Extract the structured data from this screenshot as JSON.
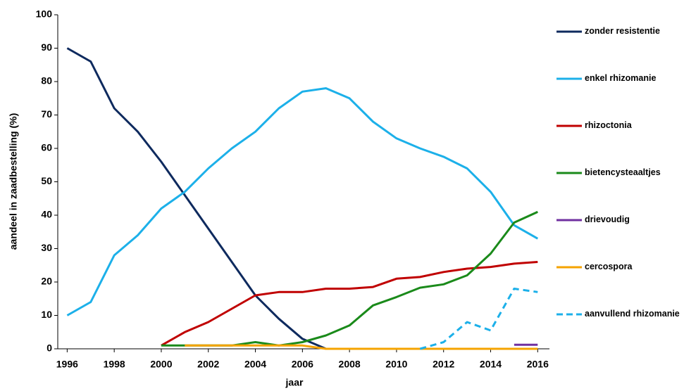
{
  "chart_data": {
    "type": "line",
    "x_label": "jaar",
    "y_label": "aandeel in zaadbestelling (%)",
    "x": [
      1996,
      1997,
      1998,
      1999,
      2000,
      2001,
      2002,
      2003,
      2004,
      2005,
      2006,
      2007,
      2008,
      2009,
      2010,
      2011,
      2012,
      2013,
      2014,
      2015,
      2016
    ],
    "xlim": [
      1995.6,
      2016.5
    ],
    "xticks": [
      1996,
      1998,
      2000,
      2002,
      2004,
      2006,
      2008,
      2010,
      2012,
      2014,
      2016
    ],
    "ylim": [
      0,
      100
    ],
    "yticks": [
      0,
      10,
      20,
      30,
      40,
      50,
      60,
      70,
      80,
      90,
      100
    ],
    "grid": false,
    "legend": "right",
    "series": [
      {
        "name": "zonder resistentie",
        "color": "#0e2a5e",
        "values": [
          90,
          86,
          72,
          65,
          56,
          46,
          36,
          26,
          16,
          9,
          3,
          0,
          null,
          null,
          null,
          null,
          null,
          null,
          null,
          null,
          null
        ]
      },
      {
        "name": "enkel rhizomanie",
        "color": "#1cb0e9",
        "values": [
          10,
          14,
          28,
          34,
          42,
          47,
          54,
          60,
          65,
          72,
          77,
          78,
          75,
          68,
          63,
          60,
          57.5,
          54,
          47,
          37,
          33
        ]
      },
      {
        "name": "rhizoctonia",
        "color": "#c00000",
        "values": [
          null,
          null,
          null,
          null,
          1,
          5,
          8,
          12,
          16,
          17,
          17,
          18,
          18,
          18.5,
          21,
          21.5,
          23,
          24,
          24.5,
          25.5,
          26
        ]
      },
      {
        "name": "bietencysteaaltjes",
        "color": "#1a8a1a",
        "values": [
          null,
          null,
          null,
          null,
          1,
          1,
          1,
          1,
          2,
          1,
          2,
          4,
          7,
          13,
          15.5,
          18.3,
          19.3,
          22,
          28.5,
          37.8,
          41
        ]
      },
      {
        "name": "drievoudig",
        "color": "#7030a0",
        "values": [
          null,
          null,
          null,
          null,
          null,
          null,
          null,
          null,
          null,
          null,
          null,
          null,
          null,
          null,
          null,
          null,
          null,
          null,
          null,
          1.2,
          1.2
        ]
      },
      {
        "name": "cercospora",
        "color": "#f5a300",
        "values": [
          null,
          null,
          null,
          null,
          null,
          1,
          1,
          1,
          1,
          1,
          1,
          0,
          0,
          0,
          0,
          0,
          0,
          0,
          0,
          0,
          0
        ]
      },
      {
        "name": "aanvullend rhizomanie",
        "color": "#1cb0e9",
        "dashed": true,
        "values": [
          null,
          null,
          null,
          null,
          null,
          null,
          null,
          null,
          null,
          null,
          null,
          null,
          null,
          null,
          null,
          0,
          2,
          8,
          5.5,
          18,
          17
        ]
      }
    ]
  }
}
